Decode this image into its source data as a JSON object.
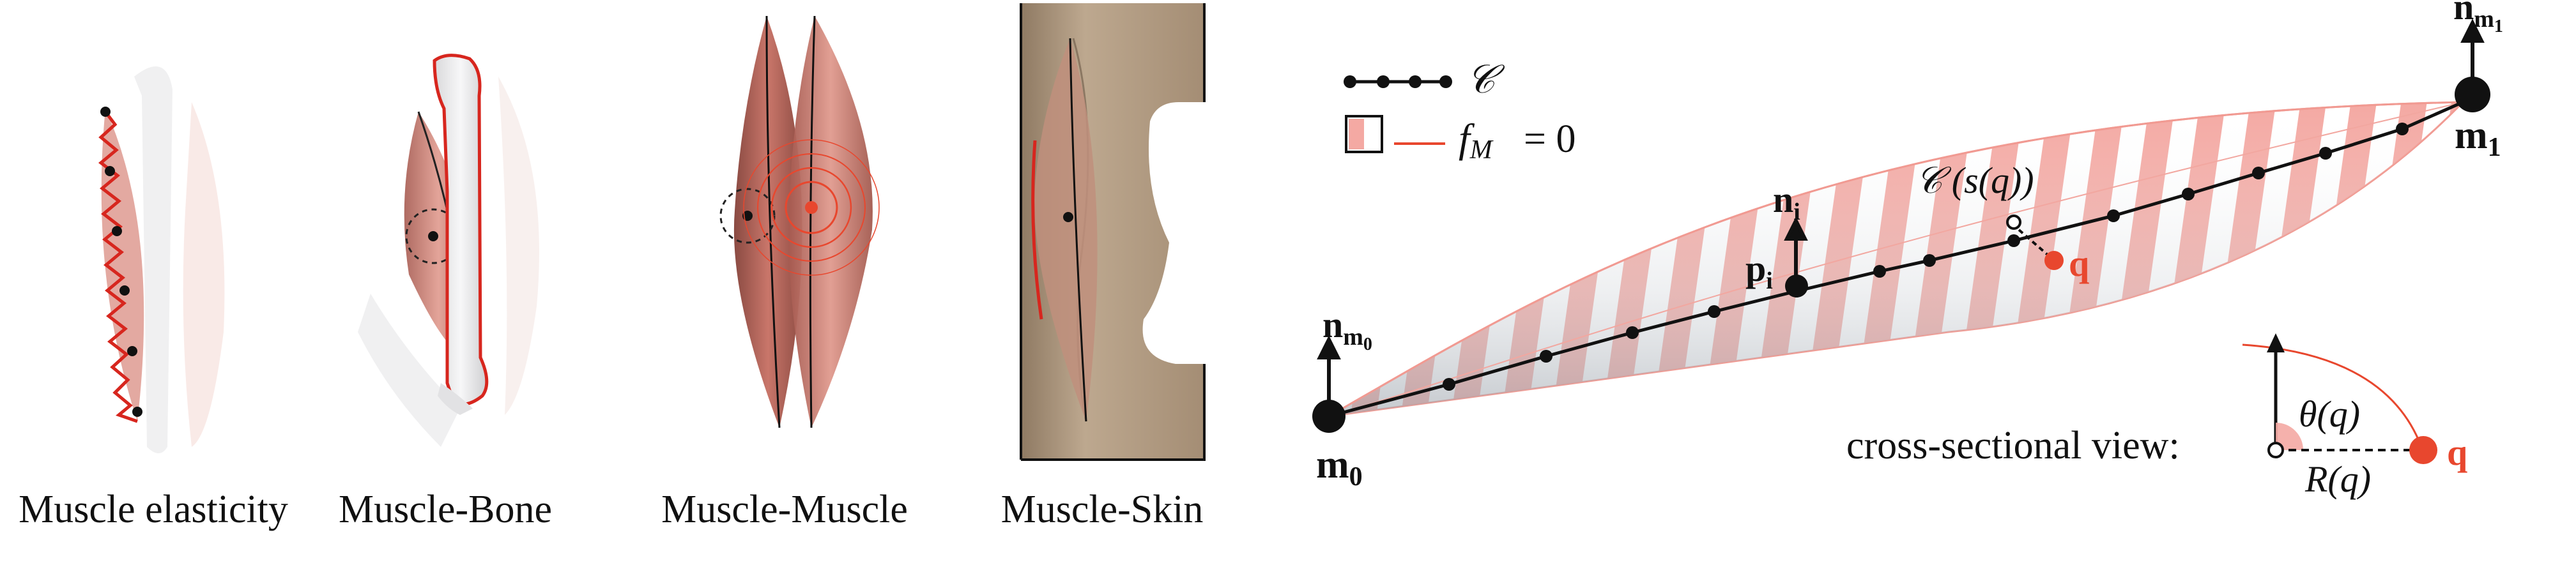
{
  "captions": {
    "elasticity": "Muscle elasticity",
    "bone": "Muscle-Bone",
    "muscle": "Muscle-Muscle",
    "skin": "Muscle-Skin"
  },
  "legend": {
    "curve_symbol": "𝒞",
    "fm_label": "f",
    "fm_sub": "M",
    "fm_value": "= 0"
  },
  "diagram": {
    "m0": "m",
    "m0_sub": "0",
    "m1": "m",
    "m1_sub": "1",
    "n_m0": "n",
    "n_m0_sub": "m",
    "n_m0_subsub": "0",
    "n_m1": "n",
    "n_m1_sub": "m",
    "n_m1_subsub": "1",
    "n_i": "n",
    "n_i_sub": "i",
    "p_i": "p",
    "p_i_sub": "i",
    "curve_at_s": "𝒞 (s(q))",
    "q": "q",
    "cross_section_label": "cross-sectional view:",
    "theta": "θ(q)",
    "radius": "R(q)"
  },
  "colors": {
    "accent_red": "#e8472e",
    "muscle_fill": "#b8645a",
    "pink_stripe": "#f4a9a3",
    "skin": "#a58d73"
  }
}
